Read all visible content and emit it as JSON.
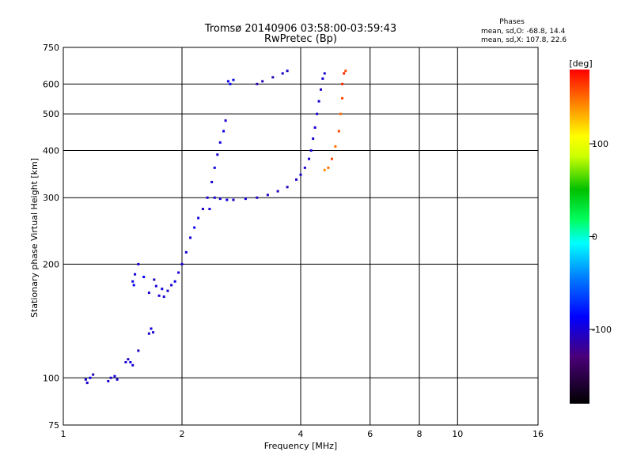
{
  "chart_data": {
    "type": "scatter",
    "title": "Tromsø 20140906 03:58:00-03:59:43",
    "subtitle": "RwPretec (Bp)",
    "xlabel": "Frequency [MHz]",
    "ylabel": "Stationary phase Virtual Height [km]",
    "xscale": "log",
    "yscale": "log",
    "xlim": [
      1,
      16
    ],
    "ylim": [
      75,
      750
    ],
    "xticks": [
      1,
      2,
      4,
      6,
      8,
      10,
      16
    ],
    "yticks": [
      75,
      100,
      200,
      300,
      400,
      500,
      600,
      750
    ],
    "x_gridlines": [
      2,
      4,
      6,
      8,
      10
    ],
    "y_gridlines": [
      100,
      200,
      300,
      400,
      500,
      600
    ],
    "info": {
      "heading": "Phases",
      "line_o": "mean, sd,O: -68.8, 14.4",
      "line_x": "mean, sd,X: 107.8, 22.6"
    },
    "colorbar": {
      "label": "[deg]",
      "range": [
        -180,
        180
      ],
      "ticks": [
        100,
        0,
        -100
      ]
    },
    "series": [
      {
        "points": [
          [
            1.14,
            99,
            -100
          ],
          [
            1.15,
            97,
            -100
          ],
          [
            1.17,
            100,
            -95
          ],
          [
            1.19,
            102,
            -110
          ],
          [
            1.3,
            98,
            -100
          ],
          [
            1.32,
            100,
            -105
          ],
          [
            1.35,
            101,
            -95
          ],
          [
            1.37,
            99,
            -100
          ],
          [
            1.44,
            110,
            -100
          ],
          [
            1.46,
            112,
            -105
          ],
          [
            1.48,
            110,
            -95
          ],
          [
            1.5,
            108,
            -100
          ],
          [
            1.55,
            118,
            -110
          ],
          [
            1.65,
            131,
            -100
          ],
          [
            1.67,
            135,
            -95
          ],
          [
            1.69,
            132,
            -100
          ],
          [
            1.5,
            180,
            -95
          ],
          [
            1.52,
            188,
            -100
          ],
          [
            1.51,
            176,
            -90
          ],
          [
            1.55,
            200,
            -100
          ],
          [
            1.6,
            185,
            -90
          ],
          [
            1.65,
            168,
            -100
          ],
          [
            1.7,
            182,
            -110
          ],
          [
            1.72,
            175,
            -100
          ],
          [
            1.75,
            165,
            -100
          ],
          [
            1.78,
            172,
            -95
          ],
          [
            1.8,
            164,
            -100
          ],
          [
            1.84,
            170,
            -100
          ],
          [
            1.88,
            176,
            -100
          ],
          [
            1.92,
            180,
            -95
          ],
          [
            1.96,
            190,
            -100
          ],
          [
            2.0,
            200,
            -100
          ],
          [
            2.05,
            215,
            -100
          ],
          [
            2.1,
            235,
            -100
          ],
          [
            2.15,
            250,
            -95
          ],
          [
            2.2,
            265,
            -100
          ],
          [
            2.26,
            280,
            -100
          ],
          [
            2.32,
            300,
            -100
          ],
          [
            2.38,
            330,
            -100
          ],
          [
            2.42,
            360,
            -95
          ],
          [
            2.46,
            390,
            -100
          ],
          [
            2.5,
            420,
            -100
          ],
          [
            2.55,
            450,
            -95
          ],
          [
            2.58,
            480,
            -100
          ],
          [
            2.35,
            280,
            -100
          ],
          [
            2.42,
            300,
            -100
          ],
          [
            2.5,
            298,
            -100
          ],
          [
            2.6,
            296,
            -95
          ],
          [
            2.7,
            296,
            -100
          ],
          [
            2.9,
            298,
            -100
          ],
          [
            3.1,
            300,
            -105
          ],
          [
            3.3,
            305,
            -105
          ],
          [
            3.5,
            312,
            -110
          ],
          [
            3.7,
            320,
            -110
          ],
          [
            3.9,
            335,
            -105
          ],
          [
            4.0,
            345,
            -100
          ],
          [
            4.1,
            360,
            -100
          ],
          [
            4.2,
            380,
            -100
          ],
          [
            4.25,
            400,
            -100
          ],
          [
            4.3,
            430,
            -100
          ],
          [
            4.35,
            460,
            -100
          ],
          [
            4.4,
            500,
            -100
          ],
          [
            4.45,
            540,
            -100
          ],
          [
            4.5,
            580,
            -105
          ],
          [
            4.55,
            620,
            -100
          ],
          [
            4.6,
            640,
            -100
          ],
          [
            2.62,
            610,
            -95
          ],
          [
            2.65,
            600,
            -90
          ],
          [
            2.7,
            615,
            -90
          ],
          [
            3.1,
            600,
            -110
          ],
          [
            3.2,
            610,
            -110
          ],
          [
            3.4,
            625,
            -110
          ],
          [
            3.6,
            640,
            -100
          ],
          [
            3.7,
            650,
            -100
          ],
          [
            4.6,
            355,
            140
          ],
          [
            4.7,
            360,
            150
          ],
          [
            4.8,
            380,
            160
          ],
          [
            4.9,
            410,
            150
          ],
          [
            5.0,
            450,
            160
          ],
          [
            5.05,
            500,
            150
          ],
          [
            5.1,
            550,
            160
          ],
          [
            5.1,
            600,
            170
          ],
          [
            5.15,
            640,
            170
          ],
          [
            5.2,
            650,
            160
          ]
        ]
      }
    ]
  }
}
